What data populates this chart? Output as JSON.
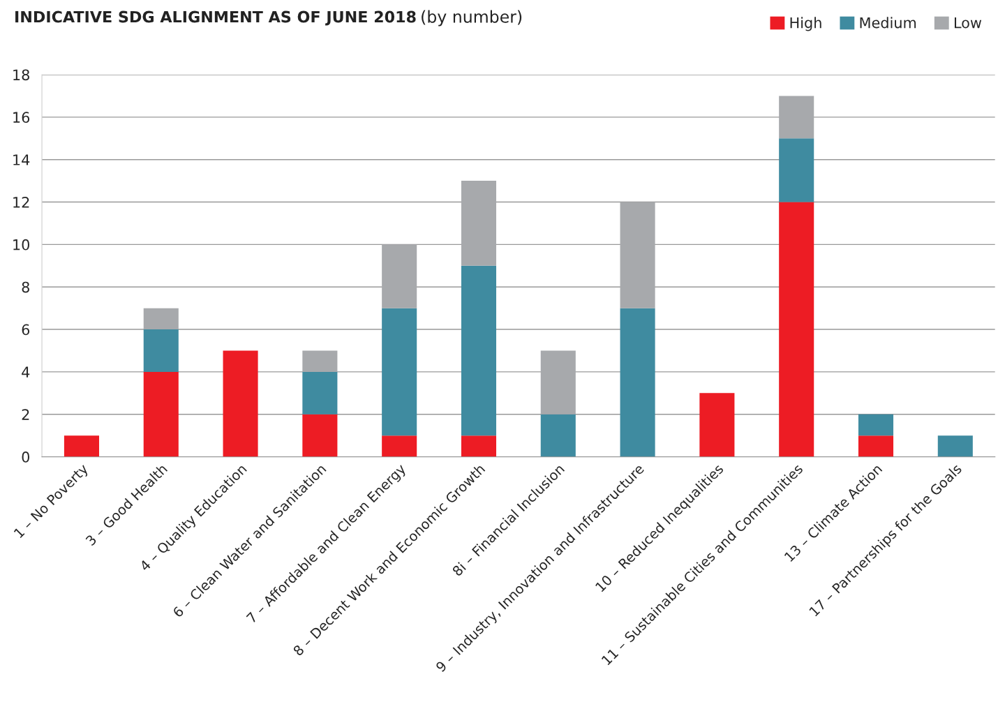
{
  "chart_data": {
    "type": "bar",
    "title": "INDICATIVE SDG ALIGNMENT AS OF JUNE 2018",
    "subtitle": "(by number)",
    "categories": [
      "1 – No Poverty",
      "3 – Good Health",
      "4 – Quality Education",
      "6 – Clean Water and Sanitation",
      "7 – Affordable and Clean Energy",
      "8 – Decent Work and Economic Growth",
      "8i – Financial Inclusion",
      "9 – Industry, Innovation and Infrastructure",
      "10 – Reduced Inequalities",
      "11 – Sustainable Cities and Communities",
      "13 – Climate Action",
      "17 – Partnerships for the Goals"
    ],
    "series": [
      {
        "name": "High",
        "color": "#ed1c24",
        "values": [
          1,
          4,
          5,
          2,
          1,
          1,
          0,
          0,
          3,
          12,
          1,
          0
        ]
      },
      {
        "name": "Medium",
        "color": "#3f8ba0",
        "values": [
          0,
          2,
          0,
          2,
          6,
          8,
          2,
          7,
          0,
          3,
          1,
          1
        ]
      },
      {
        "name": "Low",
        "color": "#a7a9ac",
        "values": [
          0,
          1,
          0,
          1,
          3,
          4,
          3,
          5,
          0,
          2,
          0,
          0
        ]
      }
    ],
    "stacked": true,
    "ylim": [
      0,
      18
    ],
    "yticks": [
      0,
      2,
      4,
      6,
      8,
      10,
      12,
      14,
      16,
      18
    ],
    "grid": "y",
    "legend": "top right"
  }
}
